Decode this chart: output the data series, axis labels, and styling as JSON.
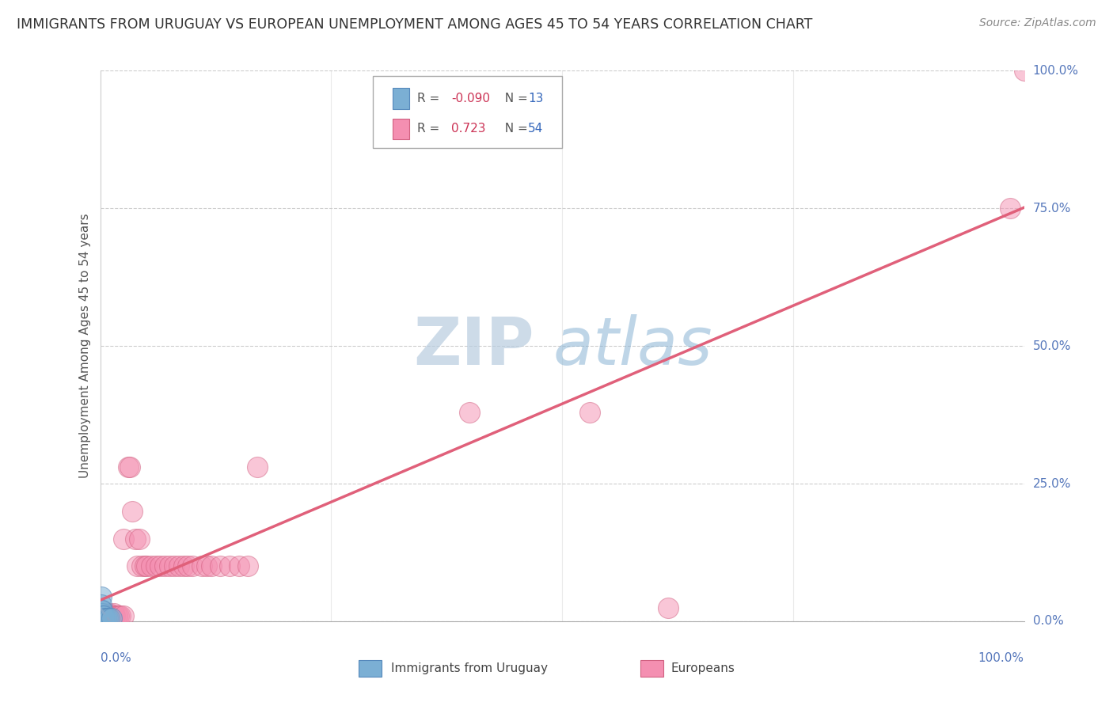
{
  "title": "IMMIGRANTS FROM URUGUAY VS EUROPEAN UNEMPLOYMENT AMONG AGES 45 TO 54 YEARS CORRELATION CHART",
  "source": "Source: ZipAtlas.com",
  "ylabel": "Unemployment Among Ages 45 to 54 years",
  "xlim": [
    0,
    1.0
  ],
  "ylim": [
    0,
    1.0
  ],
  "ytick_labels": [
    "0.0%",
    "25.0%",
    "50.0%",
    "75.0%",
    "100.0%"
  ],
  "ytick_values": [
    0.0,
    0.25,
    0.5,
    0.75,
    1.0
  ],
  "xtick_values": [
    0.0,
    0.25,
    0.5,
    0.75,
    1.0
  ],
  "xtick_labels": [
    "0.0%",
    "",
    "",
    "",
    "100.0%"
  ],
  "watermark_zip": "ZIP",
  "watermark_atlas": "atlas",
  "legend_entries": [
    {
      "label": "Immigrants from Uruguay",
      "R": "-0.090",
      "N": "13",
      "color": "#aac8e8"
    },
    {
      "label": "Europeans",
      "R": "0.723",
      "N": "54",
      "color": "#f4a0b8"
    }
  ],
  "uruguay_points": [
    [
      0.001,
      0.045
    ],
    [
      0.001,
      0.03
    ],
    [
      0.001,
      0.02
    ],
    [
      0.002,
      0.01
    ],
    [
      0.002,
      0.015
    ],
    [
      0.002,
      0.02
    ],
    [
      0.003,
      0.01
    ],
    [
      0.004,
      0.01
    ],
    [
      0.005,
      0.005
    ],
    [
      0.006,
      0.005
    ],
    [
      0.008,
      0.005
    ],
    [
      0.01,
      0.005
    ],
    [
      0.012,
      0.005
    ]
  ],
  "european_points": [
    [
      0.001,
      0.01
    ],
    [
      0.002,
      0.01
    ],
    [
      0.003,
      0.01
    ],
    [
      0.004,
      0.01
    ],
    [
      0.005,
      0.01
    ],
    [
      0.005,
      0.015
    ],
    [
      0.006,
      0.01
    ],
    [
      0.007,
      0.015
    ],
    [
      0.008,
      0.01
    ],
    [
      0.009,
      0.01
    ],
    [
      0.01,
      0.015
    ],
    [
      0.011,
      0.01
    ],
    [
      0.012,
      0.01
    ],
    [
      0.013,
      0.01
    ],
    [
      0.014,
      0.01
    ],
    [
      0.015,
      0.015
    ],
    [
      0.016,
      0.01
    ],
    [
      0.018,
      0.01
    ],
    [
      0.02,
      0.01
    ],
    [
      0.022,
      0.01
    ],
    [
      0.025,
      0.01
    ],
    [
      0.025,
      0.15
    ],
    [
      0.03,
      0.28
    ],
    [
      0.032,
      0.28
    ],
    [
      0.035,
      0.2
    ],
    [
      0.038,
      0.15
    ],
    [
      0.04,
      0.1
    ],
    [
      0.042,
      0.15
    ],
    [
      0.045,
      0.1
    ],
    [
      0.048,
      0.1
    ],
    [
      0.05,
      0.1
    ],
    [
      0.055,
      0.1
    ],
    [
      0.06,
      0.1
    ],
    [
      0.065,
      0.1
    ],
    [
      0.07,
      0.1
    ],
    [
      0.075,
      0.1
    ],
    [
      0.08,
      0.1
    ],
    [
      0.085,
      0.1
    ],
    [
      0.09,
      0.1
    ],
    [
      0.095,
      0.1
    ],
    [
      0.1,
      0.1
    ],
    [
      0.11,
      0.1
    ],
    [
      0.115,
      0.1
    ],
    [
      0.12,
      0.1
    ],
    [
      0.13,
      0.1
    ],
    [
      0.14,
      0.1
    ],
    [
      0.15,
      0.1
    ],
    [
      0.16,
      0.1
    ],
    [
      0.17,
      0.28
    ],
    [
      0.4,
      0.38
    ],
    [
      0.53,
      0.38
    ],
    [
      0.615,
      0.025
    ],
    [
      0.985,
      0.75
    ],
    [
      1.0,
      1.0
    ]
  ],
  "uruguay_color": "#7bafd4",
  "european_color": "#f48fb1",
  "uruguay_line_color": "#88aacc",
  "european_line_color": "#e0607a",
  "background_color": "#ffffff",
  "grid_color": "#cccccc",
  "title_fontsize": 12.5,
  "source_fontsize": 10,
  "axis_label_fontsize": 11,
  "tick_fontsize": 11,
  "watermark_color_zip": "#c0d0e8",
  "watermark_color_atlas": "#b0c8e0",
  "watermark_fontsize": 60
}
